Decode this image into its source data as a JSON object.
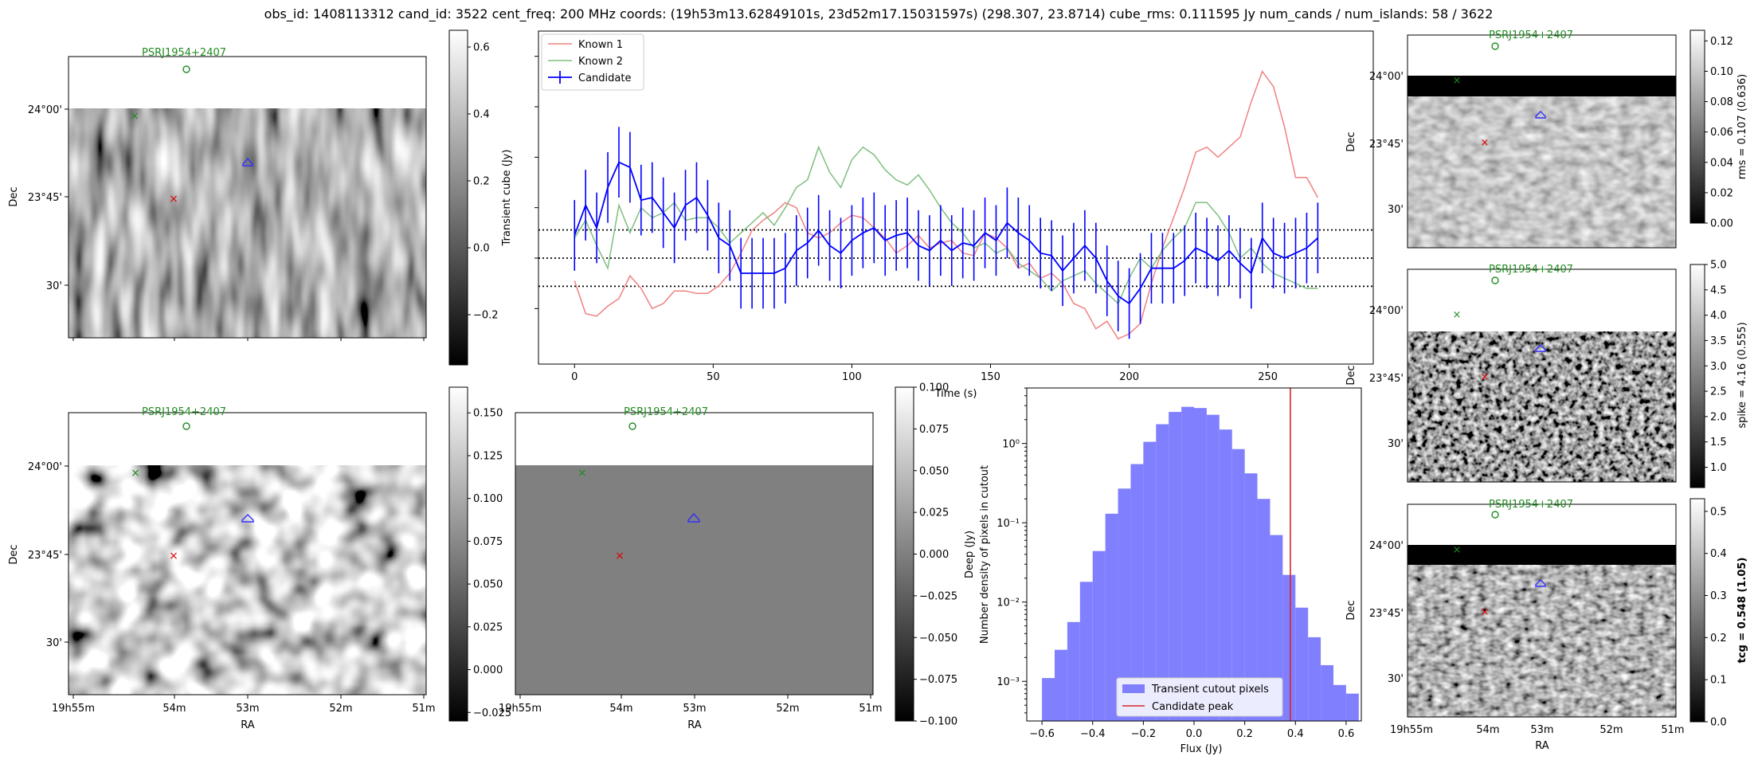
{
  "header": {
    "title": "obs_id: 1408113312 cand_id: 3522 cent_freq: 200 MHz coords: (19h53m13.62849101s, 23d52m17.15031597s) (298.307, 23.8714) cube_rms: 0.111595 Jy num_cands / num_islands: 58 / 3622"
  },
  "psr_label": "PSRJ1954+2407",
  "ra_label": "RA",
  "dec_label": "Dec",
  "ra_ticks": [
    "19h55m",
    "54m",
    "53m",
    "52m",
    "51m"
  ],
  "dec_ticks": [
    "24°00'",
    "23°45'",
    "30'"
  ],
  "colors": {
    "known1": "#f08080",
    "known2": "#7fbf7f",
    "candidate": "#0000ff",
    "hist_fill": "#8080ff",
    "peak": "#d62728",
    "psr": "#228b22"
  },
  "chart_data": [
    {
      "id": "transient_cutout",
      "type": "heatmap",
      "xlabel": "RA",
      "ylabel": "Dec",
      "colorbar_label": "Transient cube (Jy)",
      "vrange": [
        -0.35,
        0.65
      ],
      "colorbar_ticks": [
        -0.2,
        0.0,
        0.2,
        0.4,
        0.6
      ],
      "colorbar_tick_labels": [
        "−0.2",
        "0.0",
        "0.2",
        "0.4",
        "0.6"
      ]
    },
    {
      "id": "lightcurve",
      "type": "line",
      "xlabel": "Time (s)",
      "xlim": [
        -13,
        288
      ],
      "ylim": [
        -0.42,
        0.9
      ],
      "xticks": [
        0,
        50,
        100,
        150,
        200,
        250
      ],
      "hlines": [
        0.111595,
        0.0,
        -0.111595
      ],
      "legend": [
        "Known 1",
        "Known 2",
        "Candidate"
      ],
      "legend_position": "top-left",
      "x_step": 4,
      "series": [
        {
          "name": "Known 1",
          "values": [
            -0.09,
            -0.22,
            -0.23,
            -0.19,
            -0.16,
            -0.07,
            -0.12,
            -0.2,
            -0.18,
            -0.13,
            -0.13,
            -0.14,
            -0.14,
            -0.11,
            -0.06,
            0.02,
            0.11,
            0.15,
            0.18,
            0.22,
            0.2,
            0.1,
            0.08,
            0.1,
            0.14,
            0.17,
            0.16,
            0.12,
            0.08,
            0.02,
            0.05,
            0.09,
            0.04,
            0.06,
            0.07,
            0.02,
            0.01,
            0.1,
            0.08,
            0.04,
            -0.04,
            -0.02,
            -0.08,
            -0.06,
            -0.1,
            -0.18,
            -0.2,
            -0.28,
            -0.25,
            -0.32,
            -0.3,
            -0.26,
            -0.1,
            0.04,
            0.16,
            0.28,
            0.42,
            0.44,
            0.4,
            0.44,
            0.48,
            0.62,
            0.74,
            0.68,
            0.52,
            0.32,
            0.32,
            0.24
          ]
        },
        {
          "name": "Known 2",
          "values": [
            0.08,
            0.15,
            0.05,
            -0.04,
            0.21,
            0.1,
            0.2,
            0.16,
            0.18,
            0.22,
            0.15,
            0.16,
            0.16,
            0.12,
            0.06,
            0.1,
            0.14,
            0.18,
            0.13,
            0.2,
            0.28,
            0.31,
            0.44,
            0.34,
            0.28,
            0.39,
            0.44,
            0.41,
            0.35,
            0.31,
            0.29,
            0.33,
            0.27,
            0.2,
            0.14,
            0.1,
            0.04,
            0.06,
            0.02,
            0.04,
            -0.02,
            -0.05,
            -0.08,
            -0.13,
            -0.09,
            -0.07,
            -0.05,
            -0.1,
            -0.14,
            -0.18,
            -0.08,
            0.0,
            -0.04,
            0.03,
            0.08,
            0.12,
            0.22,
            0.22,
            0.17,
            0.1,
            0.0,
            0.04,
            -0.02,
            -0.06,
            -0.08,
            -0.1,
            -0.12,
            -0.12
          ]
        },
        {
          "name": "Candidate",
          "values": [
            0.09,
            0.21,
            0.12,
            0.28,
            0.38,
            0.36,
            0.23,
            0.24,
            0.18,
            0.12,
            0.21,
            0.24,
            0.17,
            0.08,
            0.05,
            -0.06,
            -0.06,
            -0.06,
            -0.06,
            -0.04,
            0.03,
            0.06,
            0.11,
            0.05,
            0.02,
            0.07,
            0.1,
            0.12,
            0.07,
            0.09,
            0.1,
            0.05,
            0.03,
            0.07,
            0.03,
            0.06,
            0.05,
            0.1,
            0.07,
            0.14,
            0.1,
            0.07,
            0.02,
            0.01,
            -0.05,
            0.0,
            0.05,
            0.0,
            -0.09,
            -0.15,
            -0.18,
            -0.12,
            -0.04,
            -0.04,
            -0.04,
            -0.01,
            0.04,
            0.02,
            -0.01,
            0.03,
            -0.02,
            -0.06,
            0.08,
            0.02,
            0.0,
            0.02,
            0.04,
            0.08
          ]
        }
      ],
      "errorbar": 0.14
    },
    {
      "id": "deep_cutout",
      "type": "heatmap",
      "xlabel": "RA",
      "ylabel": "Dec",
      "colorbar_label": "Deep (Jy)",
      "vrange": [
        -0.03,
        0.165
      ],
      "colorbar_ticks": [
        -0.025,
        0.0,
        0.025,
        0.05,
        0.075,
        0.1,
        0.125,
        0.15
      ],
      "colorbar_tick_labels": [
        "−0.025",
        "0.000",
        "0.025",
        "0.050",
        "0.075",
        "0.100",
        "0.125",
        "0.150"
      ]
    },
    {
      "id": "blank_cutout",
      "type": "heatmap",
      "xlabel": "RA",
      "ylabel": "",
      "vrange": [
        -0.1,
        0.1
      ],
      "colorbar_ticks": [
        -0.1,
        -0.075,
        -0.05,
        -0.025,
        0.0,
        0.025,
        0.05,
        0.075,
        0.1
      ],
      "colorbar_tick_labels": [
        "−0.100",
        "−0.075",
        "−0.050",
        "−0.025",
        "0.000",
        "0.025",
        "0.050",
        "0.075",
        "0.100"
      ]
    },
    {
      "id": "flux_histogram",
      "type": "bar",
      "title": "",
      "xlabel": "Flux (Jy)",
      "ylabel": "Number density of pixels in cutout",
      "yscale": "log",
      "xlim": [
        -0.66,
        0.66
      ],
      "ylim_exp": [
        -3.5,
        0.7
      ],
      "xticks": [
        -0.6,
        -0.4,
        -0.2,
        0.0,
        0.2,
        0.4,
        0.6
      ],
      "xtick_labels": [
        "−0.6",
        "−0.4",
        "−0.2",
        "0.0",
        "0.2",
        "0.4",
        "0.6"
      ],
      "yticks_exp": [
        -3,
        -2,
        -1,
        0
      ],
      "ytick_labels": [
        "10⁻³",
        "10⁻²",
        "10⁻¹",
        "10⁰"
      ],
      "bin_start": -0.6,
      "bin_width": 0.05,
      "values": [
        0.0011,
        0.0025,
        0.0056,
        0.018,
        0.044,
        0.13,
        0.27,
        0.55,
        1.05,
        1.75,
        2.5,
        2.9,
        2.8,
        2.3,
        1.5,
        0.85,
        0.42,
        0.2,
        0.07,
        0.022,
        0.0085,
        0.0036,
        0.0016,
        0.0009,
        0.0007
      ],
      "candidate_peak": 0.38,
      "legend": [
        "Transient cutout pixels",
        "Candidate peak"
      ],
      "legend_position": "lower-center"
    },
    {
      "id": "rms_cutout",
      "type": "heatmap",
      "colorbar_label": "rms = 0.107 (0.636)",
      "vrange": [
        0.0,
        0.127
      ],
      "colorbar_ticks": [
        0.0,
        0.02,
        0.04,
        0.06,
        0.08,
        0.1,
        0.12
      ],
      "colorbar_tick_labels": [
        "0.00",
        "0.02",
        "0.04",
        "0.06",
        "0.08",
        "0.10",
        "0.12"
      ]
    },
    {
      "id": "spike_cutout",
      "type": "heatmap",
      "colorbar_label": "spike = 4.16 (0.555)",
      "vrange": [
        0.6,
        5.0
      ],
      "colorbar_ticks": [
        1.0,
        1.5,
        2.0,
        2.5,
        3.0,
        3.5,
        4.0,
        4.5,
        5.0
      ],
      "colorbar_tick_labels": [
        "1.0",
        "1.5",
        "2.0",
        "2.5",
        "3.0",
        "3.5",
        "4.0",
        "4.5",
        "5.0"
      ]
    },
    {
      "id": "tcg_cutout",
      "type": "heatmap",
      "xlabel": "RA",
      "colorbar_label": "tcg = 0.548 (1.05)",
      "vrange": [
        0.0,
        0.53
      ],
      "colorbar_ticks": [
        0.0,
        0.1,
        0.2,
        0.3,
        0.4,
        0.5
      ],
      "colorbar_tick_labels": [
        "0.0",
        "0.1",
        "0.2",
        "0.3",
        "0.4",
        "0.5"
      ]
    }
  ]
}
